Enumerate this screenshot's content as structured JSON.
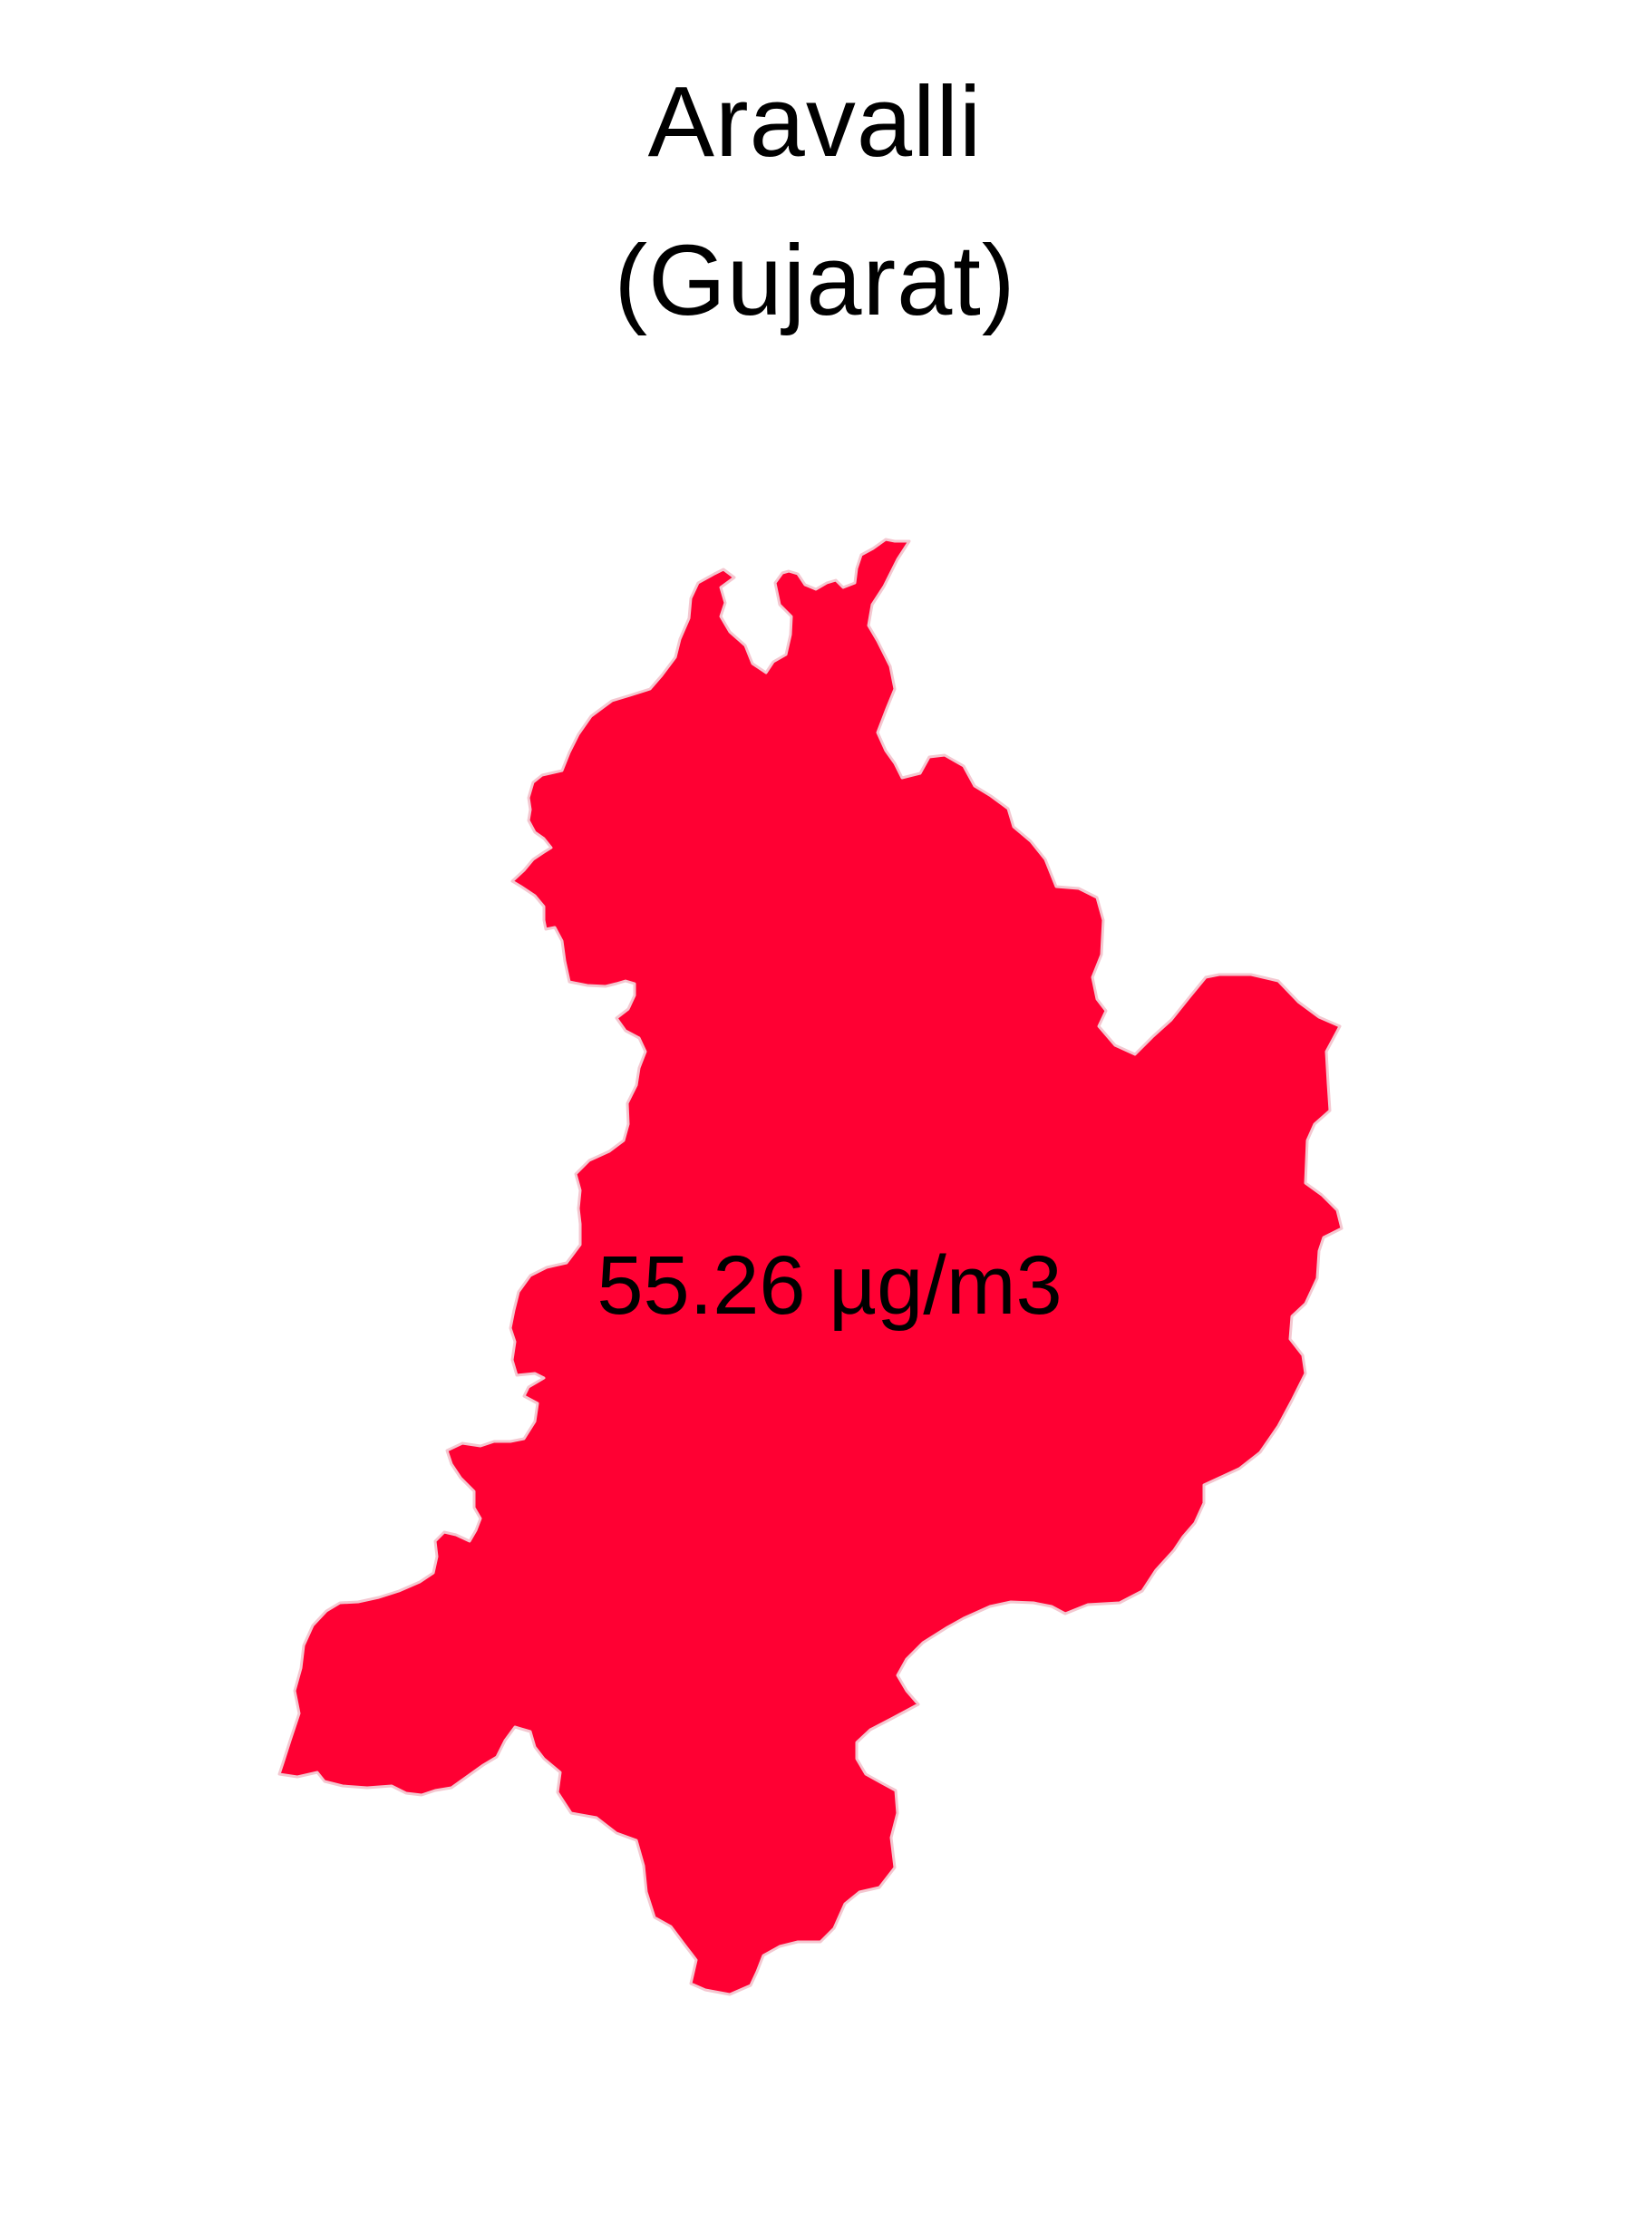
{
  "map": {
    "title_line1": "Aravalli",
    "title_line2": "(Gujarat)",
    "region_name": "Aravalli",
    "state": "Gujarat",
    "value_label": "55.26 µg/m3",
    "value": 55.26,
    "unit": "µg/m3",
    "fill_color": "#ff0033",
    "stroke_color": "#f4c7d0"
  }
}
